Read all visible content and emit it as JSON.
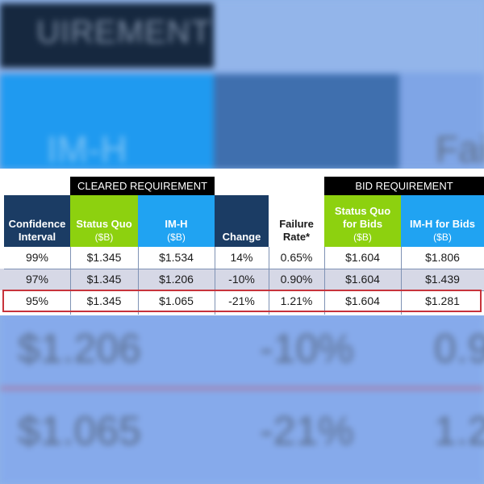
{
  "background": {
    "heading_fragment": "UIREMENT",
    "col_fragment_1": "IM-H",
    "col_fragment_2": "Fai",
    "row2": {
      "value": "$1.206",
      "change": "-10%",
      "failure": "0.9"
    },
    "row3": {
      "value": "$1.065",
      "change": "-21%",
      "failure": "1.2"
    }
  },
  "colors": {
    "navy_header": "#1b3c64",
    "green_header": "#8dd10f",
    "blue_header": "#20a3f2",
    "alt_row": "#d6d8e6",
    "highlight_border": "#c7333b"
  },
  "chart_data": {
    "type": "table",
    "group_headers": [
      "CLEARED REQUIREMENT",
      "BID REQUIREMENT"
    ],
    "columns": [
      {
        "label": "Confidence Interval",
        "sub": ""
      },
      {
        "label": "Status Quo",
        "sub": "($B)"
      },
      {
        "label": "IM-H",
        "sub": "($B)"
      },
      {
        "label": "Change",
        "sub": ""
      },
      {
        "label": "Failure Rate*",
        "sub": ""
      },
      {
        "label": "Status Quo for Bids",
        "sub": "($B)"
      },
      {
        "label": "IM-H for Bids",
        "sub": "($B)"
      }
    ],
    "rows": [
      [
        "99%",
        "$1.345",
        "$1.534",
        "14%",
        "0.65%",
        "$1.604",
        "$1.806"
      ],
      [
        "97%",
        "$1.345",
        "$1.206",
        "-10%",
        "0.90%",
        "$1.604",
        "$1.439"
      ],
      [
        "95%",
        "$1.345",
        "$1.065",
        "-21%",
        "1.21%",
        "$1.604",
        "$1.281"
      ]
    ],
    "highlighted_row": 2
  }
}
